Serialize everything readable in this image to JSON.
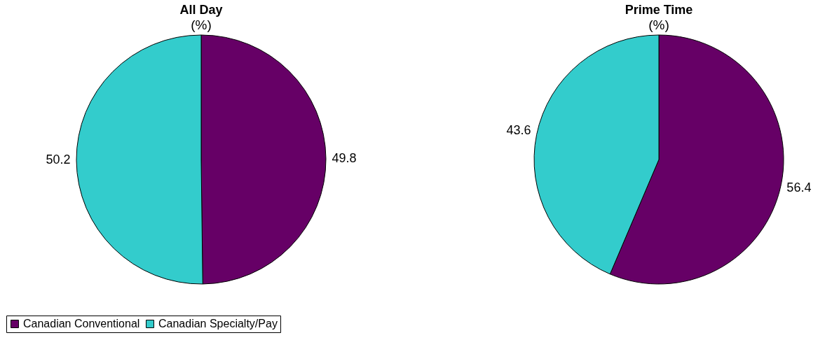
{
  "chart_data": [
    {
      "type": "pie",
      "title": "All Day",
      "subtitle": "(%)",
      "categories": [
        "Canadian Conventional",
        "Canadian Specialty/Pay"
      ],
      "values": [
        49.8,
        50.2
      ],
      "colors": [
        "#660066",
        "#33cccc"
      ],
      "data_labels": true,
      "legend": "bottom left"
    },
    {
      "type": "pie",
      "title": "Prime Time",
      "subtitle": "(%)",
      "categories": [
        null,
        null
      ],
      "values": [
        56.4,
        43.6
      ],
      "colors": [
        "#660066",
        "#33cccc"
      ],
      "data_labels": true,
      "legend": false
    }
  ]
}
